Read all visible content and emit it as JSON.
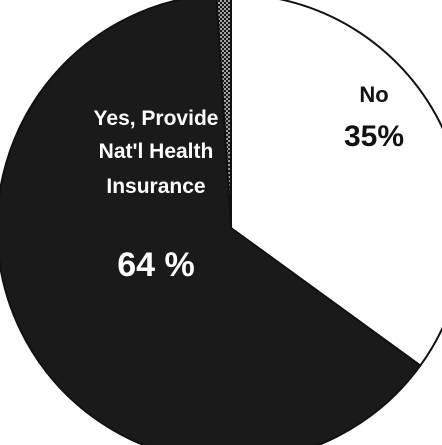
{
  "chart_data": {
    "type": "pie",
    "slices": [
      {
        "label_lines": [
          "No"
        ],
        "value_label": "35%",
        "value": 35,
        "color": "#ffffff",
        "text_color": "#111111"
      },
      {
        "label_lines": [
          "Yes, Provide",
          "Nat'l Health",
          "Insurance"
        ],
        "value_label": "64 %",
        "value": 64,
        "color": "#1a1a1a",
        "text_color": "#ffffff"
      },
      {
        "label_lines": [],
        "value_label": "",
        "value": 1,
        "color": "#1a1a1a",
        "pattern": "dotted",
        "text_color": "#ffffff"
      }
    ]
  }
}
